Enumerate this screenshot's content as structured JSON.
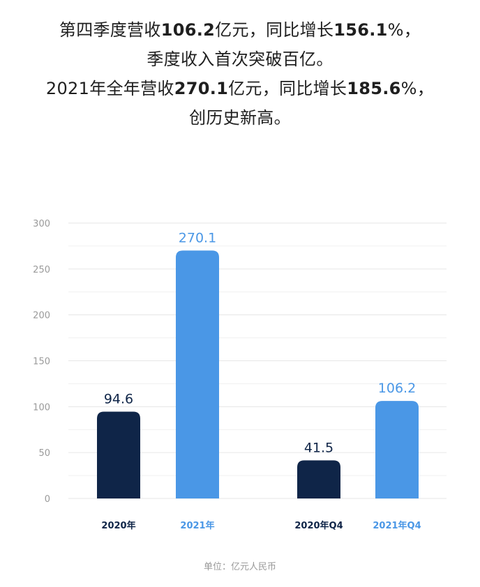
{
  "headline": {
    "line1": {
      "a": "第四季度营收",
      "b": "106.2",
      "c": "亿元，同比增长",
      "d": "156.1",
      "e": "%，"
    },
    "line2": "季度收入首次突破百亿。",
    "line3": {
      "a": "2021年全年营收",
      "b": "270.1",
      "c": "亿元，同比增长",
      "d": "185.6",
      "e": "%，"
    },
    "line4": "创历史新高。"
  },
  "unit_note": "单位：亿元人民币",
  "colors": {
    "dark": "#0f2548",
    "blue": "#4a97e6",
    "grid": "#e6e6e6",
    "tick": "#9a9a9a"
  },
  "chart_data": {
    "type": "bar",
    "title": "",
    "xlabel": "",
    "ylabel": "",
    "ylim": [
      0,
      300
    ],
    "yticks": [
      0,
      50,
      100,
      150,
      200,
      250,
      300
    ],
    "grid": true,
    "categories": [
      "2020年",
      "2021年",
      "2020年Q4",
      "2021年Q4"
    ],
    "values": [
      94.6,
      270.1,
      41.5,
      106.2
    ],
    "data_labels": [
      "94.6",
      "270.1",
      "41.5",
      "106.2"
    ],
    "bar_colors": [
      "dark",
      "blue",
      "dark",
      "blue"
    ]
  }
}
